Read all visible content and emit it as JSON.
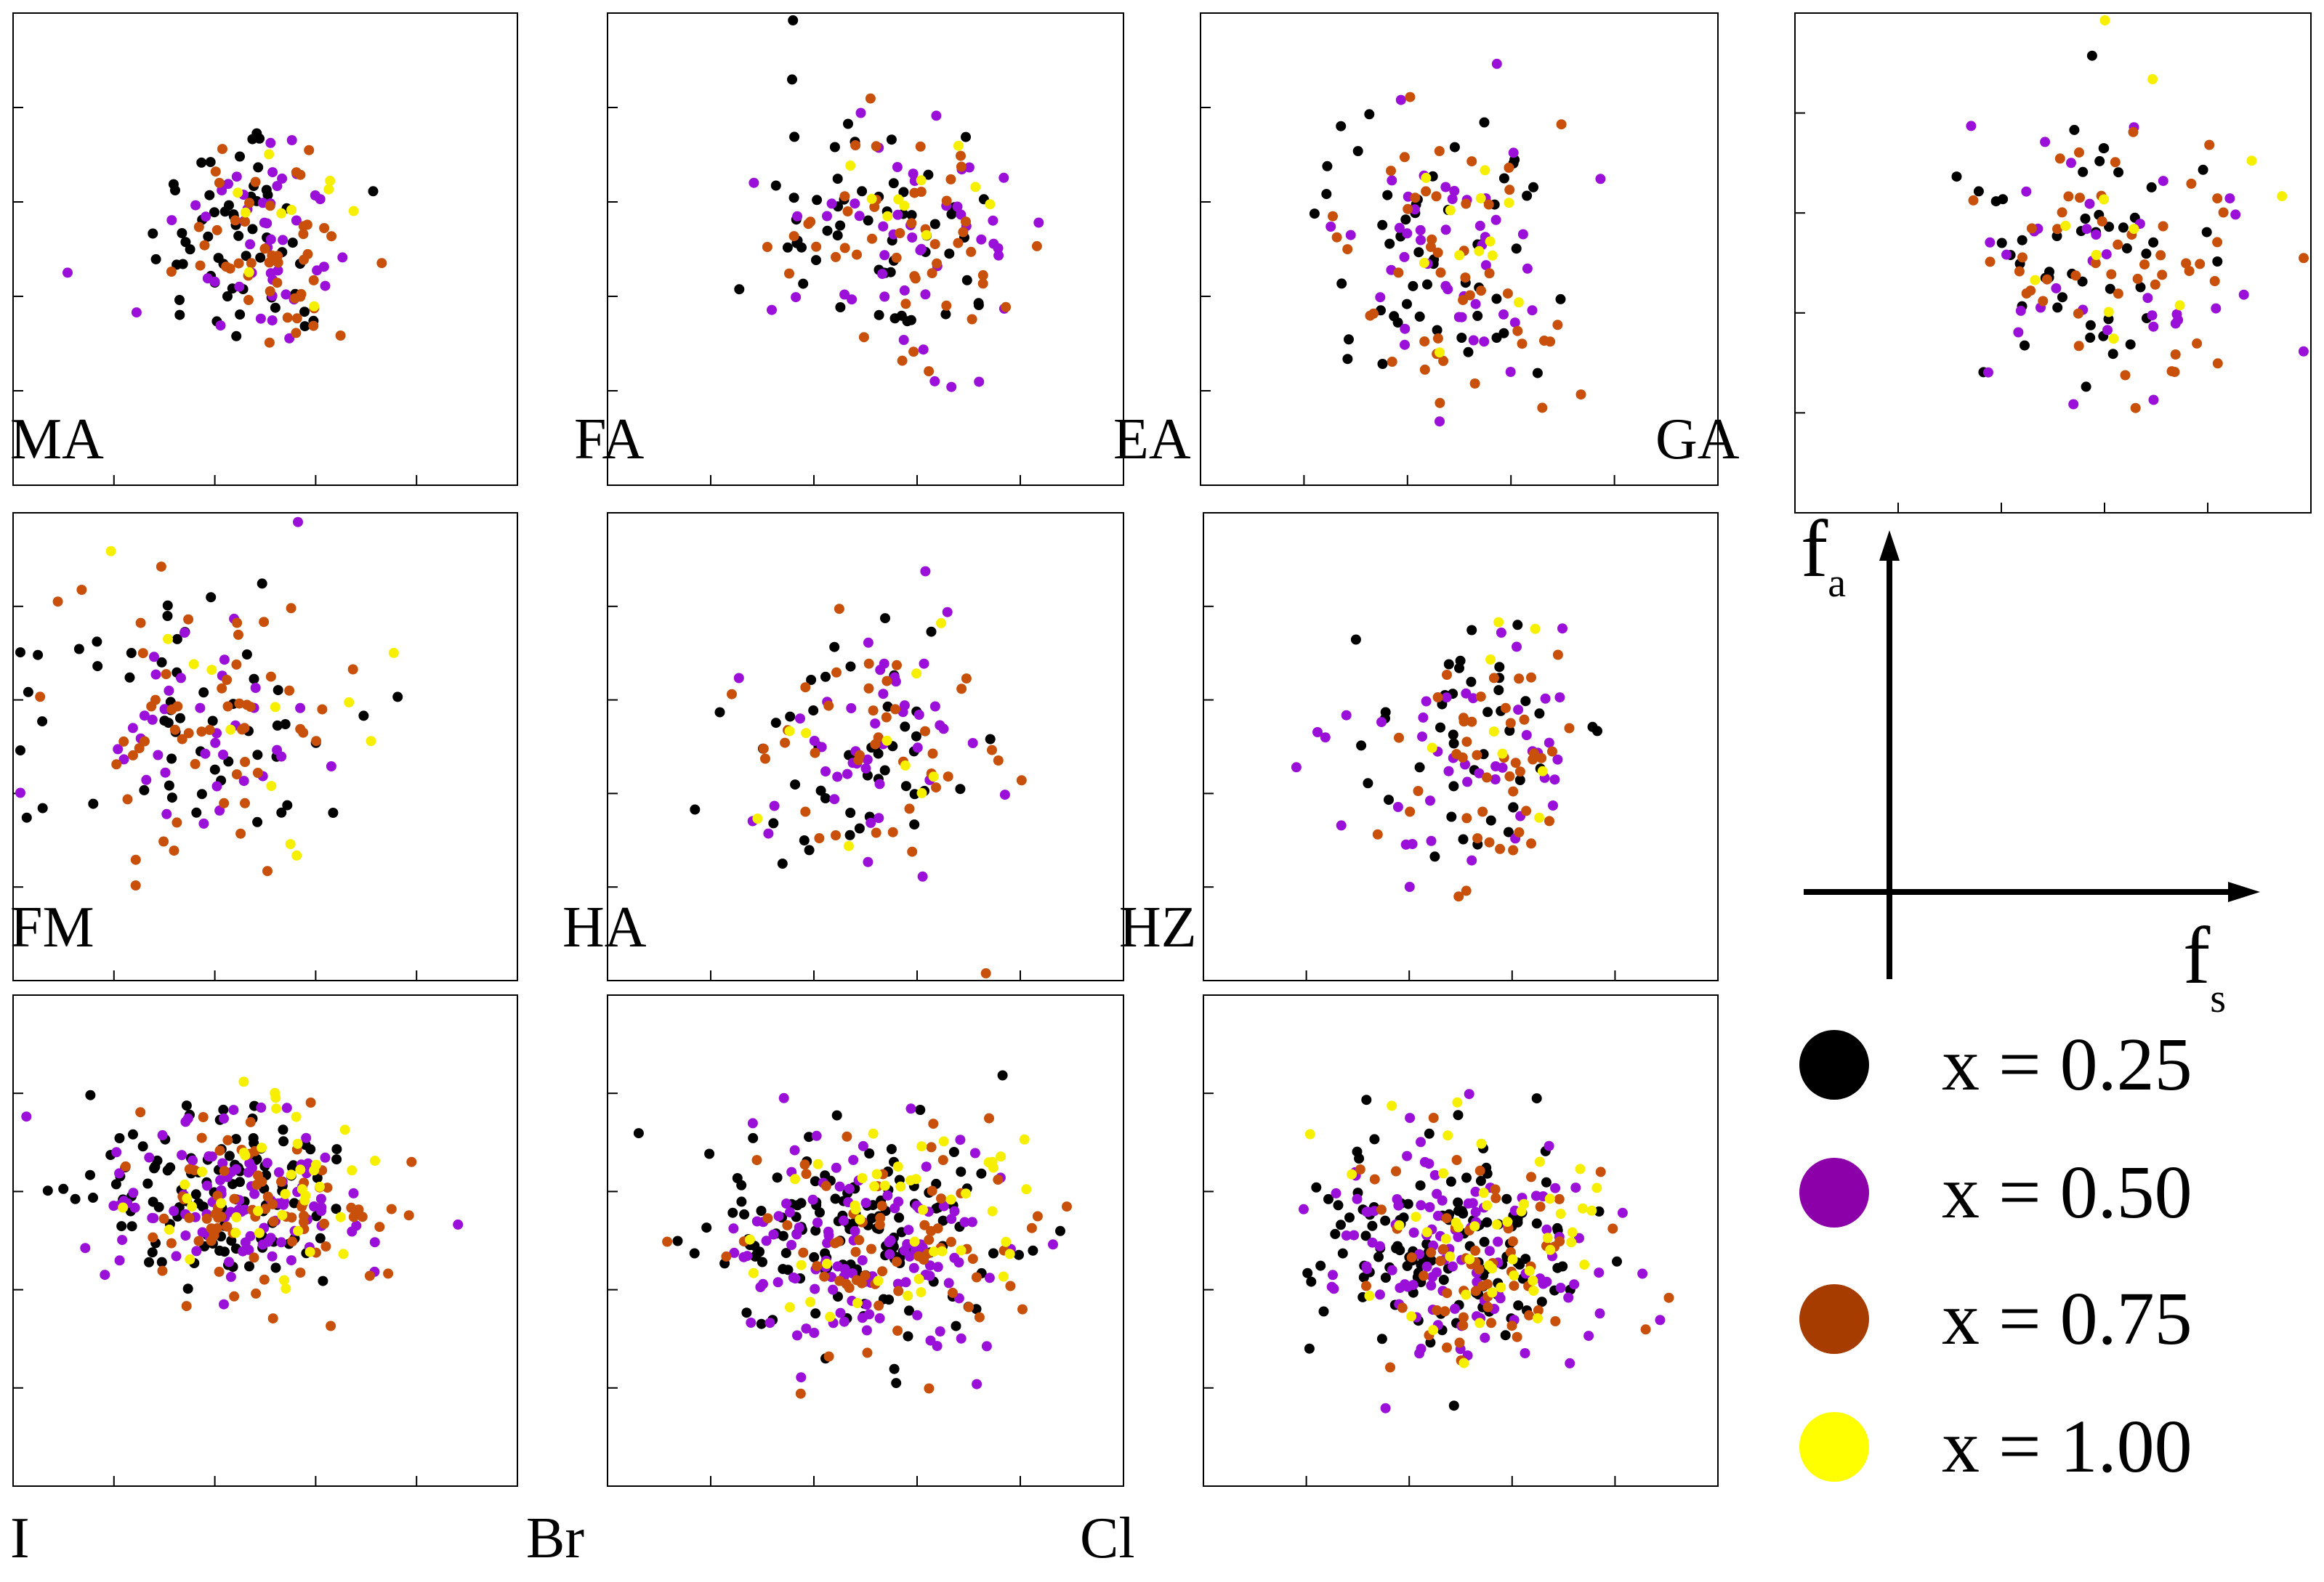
{
  "legend": {
    "items": [
      {
        "label": "x = 0.25",
        "color": "#000000"
      },
      {
        "label": "x = 0.50",
        "color": "#8b00a8"
      },
      {
        "label": "x = 0.75",
        "color": "#a63c00"
      },
      {
        "label": "x = 1.00",
        "color": "#ffff00"
      }
    ]
  },
  "axes_diagram": {
    "y_symbol": "f",
    "y_sub": "a",
    "x_symbol": "f",
    "x_sub": "s"
  },
  "halides": {
    "col1": "I",
    "col2": "Br",
    "col3": "Cl"
  },
  "palette": {
    "x025": "#000000",
    "x050": "#9a10d8",
    "x075": "#c8500a",
    "x100": "#f6f000",
    "frame": "#000000"
  },
  "chart_data": {
    "type": "scatter",
    "title": "",
    "xlabel": "f_s",
    "ylabel": "f_a",
    "series_names": [
      "x = 0.25",
      "x = 0.50",
      "x = 0.75",
      "x = 1.00"
    ],
    "panels": [
      {
        "id": "MA",
        "cation": "MA",
        "halide": "I",
        "counts": [
          58,
          46,
          48,
          10
        ],
        "center": [
          0.5,
          0.5
        ],
        "spread": [
          0.28,
          0.38
        ]
      },
      {
        "id": "FA",
        "cation": "FA",
        "halide": "Br",
        "counts": [
          58,
          48,
          48,
          10
        ],
        "center": [
          0.58,
          0.48
        ],
        "spread": [
          0.34,
          0.4
        ]
      },
      {
        "id": "EA",
        "cation": "EA",
        "halide": "Cl",
        "counts": [
          52,
          46,
          46,
          12
        ],
        "center": [
          0.49,
          0.52
        ],
        "spread": [
          0.32,
          0.42
        ]
      },
      {
        "id": "GA",
        "cation": "GA",
        "halide": "",
        "counts": [
          50,
          36,
          50,
          12
        ],
        "center": [
          0.62,
          0.5
        ],
        "spread": [
          0.38,
          0.42
        ]
      },
      {
        "id": "FM",
        "cation": "FM",
        "halide": "I",
        "counts": [
          55,
          38,
          56,
          12
        ],
        "center": [
          0.38,
          0.45
        ],
        "spread": [
          0.44,
          0.42
        ]
      },
      {
        "id": "HA",
        "cation": "HA",
        "halide": "Br",
        "counts": [
          46,
          44,
          40,
          10
        ],
        "center": [
          0.52,
          0.52
        ],
        "spread": [
          0.36,
          0.44
        ]
      },
      {
        "id": "HZ",
        "cation": "HZ",
        "halide": "Cl",
        "counts": [
          42,
          44,
          44,
          8
        ],
        "center": [
          0.55,
          0.52
        ],
        "spread": [
          0.34,
          0.42
        ]
      },
      {
        "id": "I",
        "cation": "",
        "halide": "I",
        "counts": [
          120,
          100,
          80,
          40
        ],
        "center": [
          0.47,
          0.44
        ],
        "spread": [
          0.4,
          0.26
        ]
      },
      {
        "id": "Br",
        "cation": "",
        "halide": "Br",
        "counts": [
          140,
          120,
          70,
          45
        ],
        "center": [
          0.52,
          0.52
        ],
        "spread": [
          0.42,
          0.34
        ]
      },
      {
        "id": "Cl",
        "cation": "",
        "halide": "Cl",
        "counts": [
          130,
          115,
          65,
          50
        ],
        "center": [
          0.52,
          0.54
        ],
        "spread": [
          0.4,
          0.34
        ]
      }
    ]
  }
}
